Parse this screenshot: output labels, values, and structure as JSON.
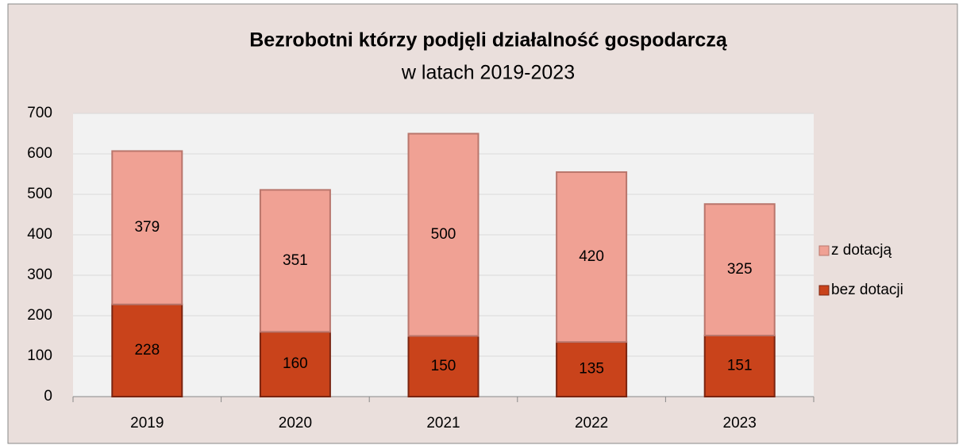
{
  "chart_data": {
    "type": "stacked_bar",
    "title": "Bezrobotni którzy podjęli działalność gospodarczą",
    "subtitle": "w latach 2019-2023",
    "categories": [
      "2019",
      "2020",
      "2021",
      "2022",
      "2023"
    ],
    "series": [
      {
        "name": "bez dotacji",
        "color": "#c9431b",
        "values": [
          228,
          160,
          150,
          135,
          151
        ]
      },
      {
        "name": "z dotacją",
        "color": "#f0a194",
        "values": [
          379,
          351,
          500,
          420,
          325
        ]
      }
    ],
    "ylim": [
      0,
      700
    ],
    "yticks": [
      0,
      100,
      200,
      300,
      400,
      500,
      600,
      700
    ],
    "grid": true,
    "legend": "right"
  }
}
